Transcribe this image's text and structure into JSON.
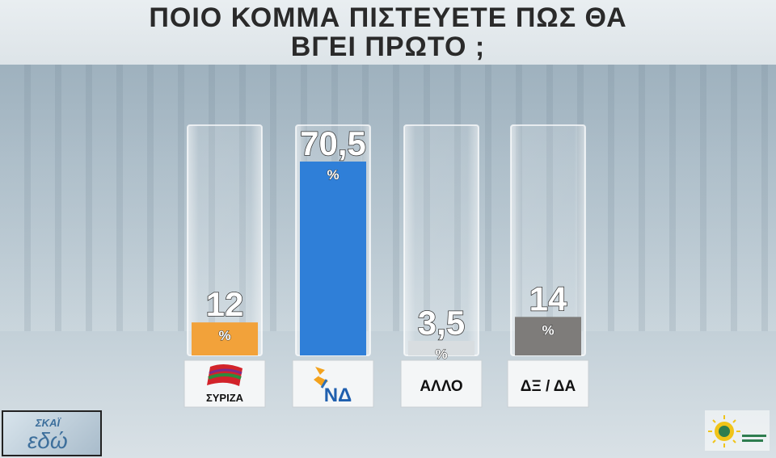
{
  "title": {
    "line1": "ΠΟΙΟ ΚΟΜΜΑ ΠΙΣΤΕΥΕΤΕ ΠΩΣ ΘΑ",
    "line2": "ΒΓΕΙ ΠΡΩΤΟ ;"
  },
  "chart_data": {
    "type": "bar",
    "title": "ΠΟΙΟ ΚΟΜΜΑ ΠΙΣΤΕΥΕΤΕ ΠΩΣ ΘΑ ΒΓΕΙ ΠΡΩΤΟ ;",
    "categories": [
      "ΣΥΡΙΖΑ",
      "ΝΔ",
      "ΑΛΛΟ",
      "ΔΞ / ΔΑ"
    ],
    "values": [
      12,
      70.5,
      3.5,
      14
    ],
    "value_labels": [
      "12",
      "70,5",
      "3,5",
      "14"
    ],
    "unit": "%",
    "colors": [
      "#f2a23a",
      "#2f7fd8",
      "#d8dde0",
      "#7e7c7a"
    ],
    "ylim": [
      0,
      80
    ],
    "grid": false,
    "legend": "none"
  },
  "logos": {
    "left": "ΣΚΑΪ",
    "left_sub": "εδώ",
    "syriza_icon": "syriza-flag-icon",
    "nd_icon": "nd-torch-icon"
  }
}
